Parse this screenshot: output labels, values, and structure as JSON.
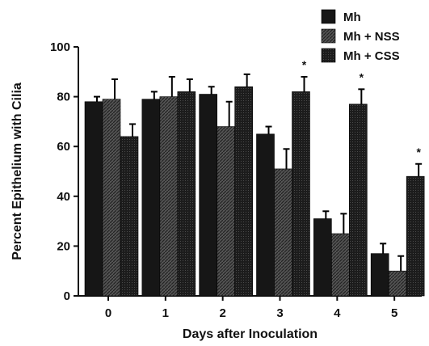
{
  "chart_data": {
    "type": "bar",
    "xlabel": "Days after Inoculation",
    "ylabel": "Percent Epithelium with Cilia",
    "categories": [
      "0",
      "1",
      "2",
      "3",
      "4",
      "5"
    ],
    "ylim": [
      0,
      100
    ],
    "yticks": [
      "0",
      "20",
      "40",
      "60",
      "80",
      "100"
    ],
    "legend": "top-right",
    "grid": false,
    "series": [
      {
        "name": "Mh",
        "values": [
          78,
          79,
          81,
          65,
          31,
          17
        ],
        "errors": [
          2,
          3,
          3,
          3,
          3,
          4
        ],
        "color": "#1a1a1a"
      },
      {
        "name": "Mh + NSS",
        "values": [
          79,
          80,
          68,
          51,
          25,
          10
        ],
        "errors": [
          8,
          8,
          10,
          8,
          8,
          6
        ],
        "color": "#3a3a3a"
      },
      {
        "name": "Mh + CSS",
        "values": [
          64,
          82,
          84,
          82,
          77,
          48
        ],
        "errors": [
          5,
          5,
          5,
          6,
          6,
          5
        ],
        "color": "#282828"
      }
    ],
    "significance": [
      {
        "category": "3",
        "series": "Mh + CSS",
        "label": "*"
      },
      {
        "category": "4",
        "series": "Mh + CSS",
        "label": "*"
      },
      {
        "category": "5",
        "series": "Mh + CSS",
        "label": "*"
      }
    ]
  }
}
